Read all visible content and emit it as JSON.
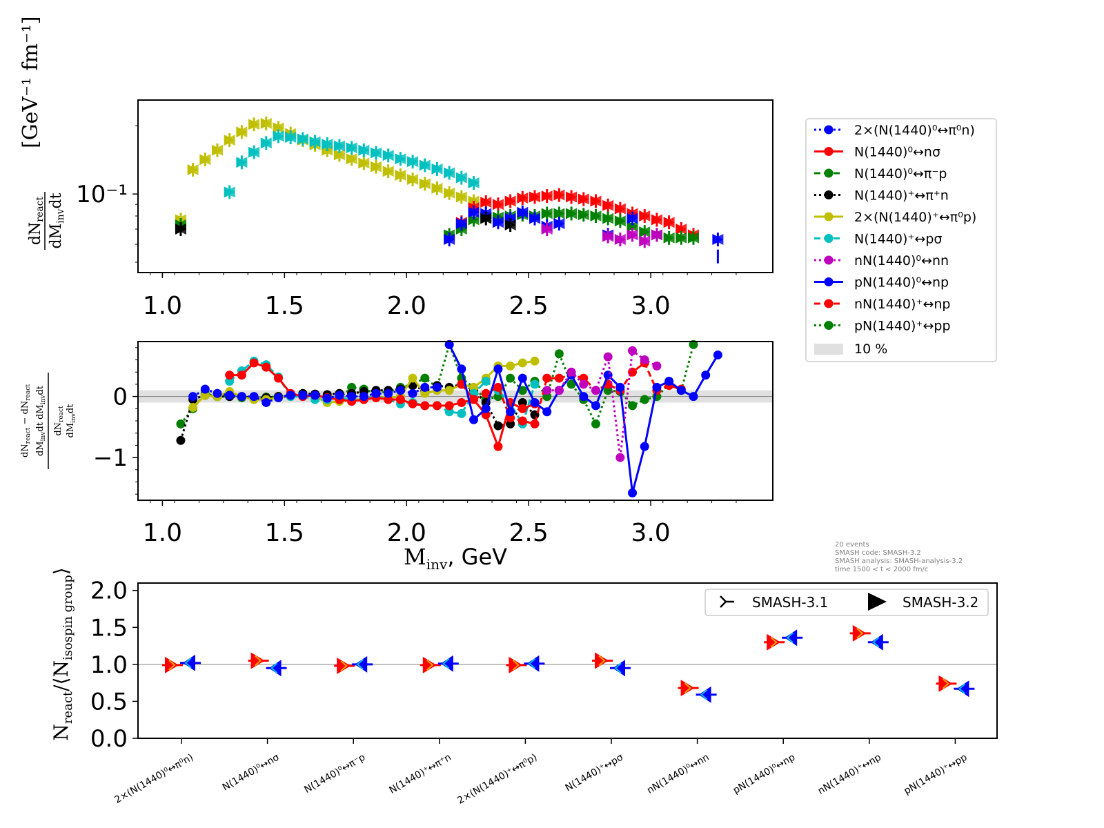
{
  "colors": {
    "blue": "#0000ff",
    "red": "#ff0000",
    "green": "#008000",
    "black": "#000000",
    "olive": "#bfbf00",
    "cyan": "#00bfbf",
    "magenta": "#bf00bf",
    "band": "#e0e0e0",
    "ref_line": "#808080"
  },
  "legend": {
    "entries": [
      {
        "label": "2×(N(1440)⁰↔π⁰n)",
        "color": "#0000ff",
        "dash": "3,4"
      },
      {
        "label": "N(1440)⁰↔nσ",
        "color": "#ff0000",
        "dash": ""
      },
      {
        "label": "N(1440)⁰↔π⁻p",
        "color": "#008000",
        "dash": "9,5"
      },
      {
        "label": "N(1440)⁺↔π⁺n",
        "color": "#000000",
        "dash": "3,4"
      },
      {
        "label": "2×(N(1440)⁺↔π⁰p)",
        "color": "#bfbf00",
        "dash": ""
      },
      {
        "label": "N(1440)⁺↔pσ",
        "color": "#00bfbf",
        "dash": "9,5"
      },
      {
        "label": "nN(1440)⁰↔nn",
        "color": "#bf00bf",
        "dash": "3,4"
      },
      {
        "label": "pN(1440)⁰↔np",
        "color": "#0000ff",
        "dash": ""
      },
      {
        "label": "nN(1440)⁺↔np",
        "color": "#ff0000",
        "dash": "9,5"
      },
      {
        "label": "pN(1440)⁺↔pp",
        "color": "#008000",
        "dash": "3,4"
      }
    ],
    "band_label": "10 %"
  },
  "info_text": [
    "20 events",
    "SMASH code:      SMASH-3.2",
    "SMASH analysis: SMASH-analysis-3.2",
    "time 1500 < t < 2000 fm/c"
  ],
  "version_legend": {
    "old": "SMASH-3.1",
    "new": "SMASH-3.2"
  },
  "chart_data": [
    {
      "type": "scatter",
      "panel": "top",
      "yscale": "log",
      "xlim": [
        0.9,
        3.5
      ],
      "ylim": [
        0.045,
        0.26
      ],
      "xticks": [
        "1.0",
        "1.5",
        "2.0",
        "2.5",
        "3.0"
      ],
      "yticks": [
        "10⁻¹"
      ],
      "ylabel_numerator": "dN",
      "ylabel_numerator_sub": "react",
      "ylabel_denominator": "dM",
      "ylabel_denominator_sub": "inv",
      "ylabel_denominator_tail": "dt",
      "ylabel_units": "[GeV⁻¹ fm⁻¹]",
      "series": [
        {
          "color": "#bfbf00",
          "x": [
            1.075,
            1.125,
            1.175,
            1.225,
            1.275,
            1.325,
            1.375,
            1.425,
            1.475,
            1.525,
            1.575,
            1.625,
            1.675,
            1.725,
            1.775,
            1.825,
            1.875,
            1.925,
            1.975,
            2.025,
            2.075,
            2.125,
            2.175,
            2.225,
            2.275
          ],
          "y": [
            0.077,
            0.128,
            0.142,
            0.156,
            0.173,
            0.188,
            0.203,
            0.205,
            0.196,
            0.185,
            0.173,
            0.165,
            0.156,
            0.149,
            0.143,
            0.137,
            0.132,
            0.126,
            0.121,
            0.116,
            0.111,
            0.106,
            0.101,
            0.097,
            0.093
          ]
        },
        {
          "color": "#00bfbf",
          "x": [
            1.275,
            1.325,
            1.375,
            1.425,
            1.475,
            1.525,
            1.575,
            1.625,
            1.675,
            1.725,
            1.775,
            1.825,
            1.875,
            1.925,
            1.975,
            2.025,
            2.075,
            2.125,
            2.175,
            2.225,
            2.275
          ],
          "y": [
            0.102,
            0.138,
            0.153,
            0.168,
            0.18,
            0.178,
            0.175,
            0.17,
            0.166,
            0.163,
            0.16,
            0.156,
            0.152,
            0.148,
            0.143,
            0.139,
            0.134,
            0.129,
            0.124,
            0.118,
            0.112
          ]
        },
        {
          "color": "#ff0000",
          "x": [
            2.225,
            2.275,
            2.325,
            2.375,
            2.425,
            2.475,
            2.525,
            2.575,
            2.625,
            2.675,
            2.725,
            2.775,
            2.825,
            2.875,
            2.925,
            2.975,
            3.025,
            3.075,
            3.125,
            3.175
          ],
          "y": [
            0.075,
            0.087,
            0.092,
            0.09,
            0.093,
            0.096,
            0.097,
            0.098,
            0.099,
            0.097,
            0.095,
            0.093,
            0.089,
            0.086,
            0.082,
            0.08,
            0.077,
            0.075,
            0.07,
            0.066
          ]
        },
        {
          "color": "#008000",
          "x": [
            1.075,
            2.175,
            2.225,
            2.275,
            2.325,
            2.375,
            2.425,
            2.475,
            2.525,
            2.575,
            2.625,
            2.675,
            2.725,
            2.775,
            2.825,
            2.875,
            2.925,
            2.975,
            3.025,
            3.075,
            3.125,
            3.175
          ],
          "y": [
            0.073,
            0.066,
            0.07,
            0.077,
            0.079,
            0.079,
            0.08,
            0.081,
            0.08,
            0.082,
            0.082,
            0.082,
            0.081,
            0.08,
            0.078,
            0.076,
            0.072,
            0.068,
            0.066,
            0.064,
            0.064,
            0.064
          ]
        },
        {
          "color": "#0000ff",
          "x": [
            2.175,
            2.225,
            2.275,
            2.325,
            2.375,
            2.425,
            2.475,
            2.525,
            2.575,
            2.625,
            2.825,
            2.925,
            3.275
          ],
          "y": [
            0.063,
            0.074,
            0.083,
            0.082,
            0.075,
            0.078,
            0.083,
            0.078,
            0.072,
            0.074,
            0.066,
            0.078,
            0.063
          ]
        },
        {
          "color": "#bf00bf",
          "x": [
            2.575,
            2.825,
            2.875,
            2.925,
            2.975,
            3.025
          ],
          "y": [
            0.07,
            0.065,
            0.063,
            0.066,
            0.062,
            0.066
          ]
        },
        {
          "color": "#000000",
          "x": [
            1.075,
            2.325,
            2.425
          ],
          "y": [
            0.07,
            0.078,
            0.073
          ]
        },
        {
          "color": "#0000ff",
          "x": [
            3.275
          ],
          "y": [
            0.053
          ],
          "note": "error bar only"
        }
      ]
    },
    {
      "type": "line",
      "panel": "middle",
      "xlim": [
        0.9,
        3.5
      ],
      "ylim": [
        -1.7,
        0.9
      ],
      "xticks": [
        "1.0",
        "1.5",
        "2.0",
        "2.5",
        "3.0"
      ],
      "yticks": [
        "0",
        "−1"
      ],
      "xlabel_main": "M",
      "xlabel_sub": "inv",
      "xlabel_tail": ", GeV",
      "band": [
        -0.1,
        0.1
      ],
      "series": [
        {
          "color": "#008000",
          "dash": "3,4",
          "x": [
            1.075,
            1.125,
            1.175,
            1.225,
            1.275,
            1.325,
            1.375,
            1.425,
            1.475,
            1.525,
            1.575,
            1.625,
            1.675,
            1.725,
            1.775,
            1.825,
            1.875,
            1.925,
            1.975,
            2.025,
            2.075,
            2.125,
            2.175,
            2.225,
            2.275,
            2.325,
            2.375,
            2.425,
            2.475,
            2.525,
            2.575,
            2.625,
            2.675,
            2.725,
            2.775,
            2.825,
            2.875,
            2.925,
            2.975,
            3.025,
            3.075,
            3.125,
            3.175
          ],
          "y": [
            -0.45,
            -0.2,
            0.05,
            0.0,
            0.0,
            -0.02,
            -0.02,
            -0.01,
            0.0,
            0.0,
            0.02,
            0.0,
            0.0,
            -0.03,
            0.15,
            0.12,
            0.05,
            0.08,
            0.15,
            0.2,
            0.3,
            0.15,
            0.85,
            0.3,
            0.15,
            -0.05,
            0.0,
            0.3,
            0.1,
            0.25,
            0.0,
            0.7,
            0.2,
            -0.05,
            -0.45,
            0.1,
            0.08,
            -0.15,
            -0.05,
            0.0,
            0.2,
            0.1,
            0.85
          ]
        },
        {
          "color": "#000000",
          "dash": "3,4",
          "x": [
            1.075,
            1.125,
            1.175,
            1.225,
            1.275,
            1.325,
            1.375,
            1.425,
            1.475,
            1.525,
            1.575,
            1.625,
            1.675,
            1.725,
            1.775,
            1.825,
            1.875,
            1.925,
            1.975,
            2.025,
            2.075,
            2.125,
            2.175,
            2.225,
            2.275,
            2.325,
            2.375,
            2.425,
            2.475,
            2.525
          ],
          "y": [
            -0.72,
            -0.05,
            0.02,
            0.0,
            0.0,
            0.0,
            -0.02,
            -0.02,
            0.0,
            0.02,
            0.05,
            0.04,
            0.03,
            0.05,
            0.05,
            0.08,
            0.1,
            0.1,
            0.12,
            0.18,
            0.1,
            0.18,
            0.15,
            0.2,
            0.1,
            -0.1,
            -0.48,
            -0.45,
            -0.1,
            -0.3
          ]
        },
        {
          "color": "#bfbf00",
          "dash": "",
          "x": [
            1.125,
            1.175,
            1.225,
            1.275,
            1.325,
            1.375,
            1.425,
            1.475,
            1.525,
            1.575,
            1.625,
            1.675,
            1.725,
            1.775,
            1.825,
            1.875,
            1.925,
            1.975,
            2.025,
            2.075,
            2.125,
            2.175,
            2.225,
            2.275,
            2.325,
            2.375,
            2.425,
            2.475,
            2.525
          ],
          "y": [
            -0.18,
            0.02,
            0.0,
            0.08,
            0.0,
            -0.05,
            -0.05,
            -0.02,
            0.0,
            0.02,
            0.0,
            -0.1,
            -0.08,
            -0.05,
            -0.05,
            0.0,
            -0.02,
            0.0,
            0.3,
            0.05,
            0.1,
            0.1,
            0.2,
            0.15,
            0.3,
            0.5,
            0.5,
            0.55,
            0.58
          ]
        },
        {
          "color": "#00bfbf",
          "dash": "9,5",
          "x": [
            1.275,
            1.325,
            1.375,
            1.425,
            1.475,
            1.525,
            1.575,
            1.625,
            1.675,
            1.725,
            1.775,
            1.825,
            1.875,
            1.925,
            1.975,
            2.025,
            2.075,
            2.125,
            2.175,
            2.225,
            2.275,
            2.325,
            2.375,
            2.425,
            2.475,
            2.525
          ],
          "y": [
            0.25,
            0.42,
            0.58,
            0.52,
            0.32,
            0.0,
            0.0,
            -0.05,
            -0.05,
            -0.02,
            -0.05,
            -0.03,
            0.0,
            -0.05,
            -0.12,
            -0.1,
            -0.15,
            -0.15,
            -0.25,
            -0.28,
            0.05,
            0.25,
            0.1,
            -0.12,
            -0.45,
            0.2
          ]
        },
        {
          "color": "#ff0000",
          "dash": "",
          "x": [
            1.275,
            1.325,
            1.375,
            1.425,
            1.475,
            1.525,
            1.575,
            1.625,
            1.675,
            1.725,
            1.775,
            1.825,
            1.875,
            1.925,
            1.975,
            2.025,
            2.075,
            2.125,
            2.175,
            2.225,
            2.275,
            2.325,
            2.375,
            2.425,
            2.475,
            2.525
          ],
          "y": [
            0.35,
            0.35,
            0.55,
            0.48,
            0.3,
            0.05,
            0.0,
            0.02,
            -0.02,
            -0.05,
            -0.08,
            -0.05,
            -0.02,
            -0.05,
            -0.05,
            -0.12,
            -0.15,
            -0.15,
            -0.15,
            -0.1,
            -0.05,
            -0.3,
            -0.82,
            -0.1,
            -0.2,
            -0.12
          ]
        },
        {
          "color": "#ff0000",
          "dash": "9,5",
          "x": [
            2.225,
            2.275,
            2.325,
            2.375,
            2.425,
            2.475,
            2.525,
            2.575,
            2.625,
            2.675,
            2.725,
            2.775,
            2.825,
            2.875,
            2.925,
            2.975,
            3.025,
            3.075,
            3.125
          ],
          "y": [
            0.2,
            -0.05,
            0.05,
            0.15,
            -0.35,
            -0.4,
            -0.45,
            0.3,
            0.3,
            0.35,
            0.3,
            0.1,
            0.2,
            0.1,
            0.4,
            0.55,
            0.1,
            0.18,
            0.12
          ]
        },
        {
          "color": "#0000ff",
          "dash": "",
          "x": [
            2.175,
            2.225,
            2.275,
            2.325,
            2.375,
            2.425,
            2.475,
            2.525,
            2.575,
            2.625,
            2.675,
            2.725,
            2.775,
            2.825,
            2.875,
            2.925,
            2.975,
            3.025,
            3.075,
            3.125,
            3.175,
            3.225,
            3.275
          ],
          "y": [
            0.85,
            0.45,
            -0.38,
            -0.2,
            0.45,
            -0.25,
            0.3,
            -0.1,
            -0.25,
            0.1,
            0.35,
            0.0,
            -0.15,
            0.35,
            0.15,
            -1.58,
            -0.82,
            0.15,
            0.25,
            0.1,
            0.0,
            0.35,
            0.68
          ]
        },
        {
          "color": "#bf00bf",
          "dash": "3,4",
          "x": [
            2.575,
            2.625,
            2.675,
            2.725,
            2.775,
            2.825,
            2.875,
            2.925,
            2.975,
            3.025
          ],
          "y": [
            0.1,
            0.1,
            0.4,
            0.2,
            0.1,
            0.65,
            -1.0,
            0.75,
            0.6,
            0.5
          ]
        },
        {
          "color": "#0000ff",
          "dash": "3,4",
          "x": [
            1.125,
            1.175,
            1.225,
            1.275,
            1.325,
            1.375,
            1.425,
            1.475,
            1.525,
            1.575,
            1.625,
            1.675,
            1.725,
            1.775,
            1.825,
            1.875,
            1.925,
            1.975,
            2.025,
            2.075,
            2.125
          ],
          "y": [
            0.0,
            0.12,
            0.05,
            0.02,
            0.0,
            0.0,
            -0.1,
            -0.02,
            0.02,
            0.02,
            0.02,
            -0.03,
            0.02,
            0.0,
            0.0,
            0.05,
            0.05,
            0.1,
            0.05,
            0.15,
            0.15
          ]
        }
      ]
    },
    {
      "type": "scatter",
      "panel": "bottom",
      "ylim": [
        0.0,
        2.1
      ],
      "yticks": [
        "0.0",
        "0.5",
        "1.0",
        "1.5",
        "2.0"
      ],
      "ylabel_main": "N",
      "ylabel_sub1": "react",
      "ylabel_mid": "/⟨N",
      "ylabel_sub2": "isospin group",
      "ylabel_tail": "⟩",
      "reference_line": 1.0,
      "categories": [
        "2×(N(1440)⁰↔π⁰n)",
        "N(1440)⁰↔nσ",
        "N(1440)⁰↔π⁻p",
        "N(1440)⁺↔π⁺n",
        "2×(N(1440)⁺↔π⁰p)",
        "N(1440)⁺↔pσ",
        "nN(1440)⁰↔nn",
        "pN(1440)⁰↔np",
        "nN(1440)⁺↔np",
        "pN(1440)⁺↔pp"
      ],
      "series": [
        {
          "name": "SMASH-3.1",
          "values": [
            0.99,
            1.05,
            0.98,
            0.99,
            0.99,
            1.05,
            0.68,
            1.3,
            1.42,
            0.74
          ]
        },
        {
          "name": "SMASH-3.2",
          "values": [
            1.02,
            0.95,
            1.0,
            1.01,
            1.01,
            0.95,
            0.59,
            1.36,
            1.3,
            0.67
          ]
        }
      ]
    }
  ]
}
